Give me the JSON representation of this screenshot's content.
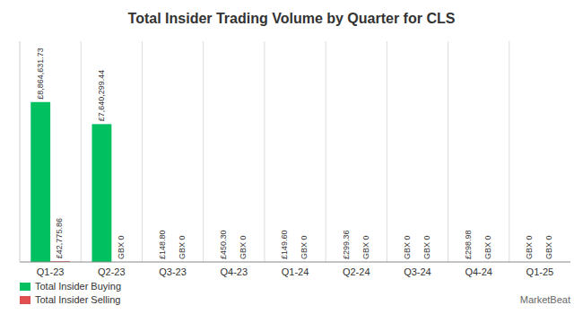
{
  "chart_data": {
    "type": "bar",
    "title": "Total Insider Trading Volume by Quarter for CLS",
    "categories": [
      "Q1-23",
      "Q2-23",
      "Q3-23",
      "Q4-23",
      "Q1-24",
      "Q2-24",
      "Q3-24",
      "Q4-24",
      "Q1-25"
    ],
    "series": [
      {
        "name": "Total Insider Buying",
        "color": "#00c060",
        "values": [
          8864631.73,
          7640299.44,
          148.8,
          450.3,
          149.6,
          299.36,
          0,
          298.98,
          0
        ],
        "value_labels": [
          "£8,864,631.73",
          "£7,640,299.44",
          "£148.80",
          "£450.30",
          "£149.60",
          "£299.36",
          "GBX 0",
          "£298.98",
          "GBX 0"
        ]
      },
      {
        "name": "Total Insider Selling",
        "color": "#e05050",
        "values": [
          42775.86,
          0,
          0,
          0,
          0,
          0,
          0,
          0,
          0
        ],
        "value_labels": [
          "£42,775.86",
          "GBX 0",
          "GBX 0",
          "GBX 0",
          "GBX 0",
          "GBX 0",
          "GBX 0",
          "GBX 0",
          "GBX 0"
        ]
      }
    ],
    "ylim": [
      0,
      12233191.7874
    ],
    "data_labels": true,
    "tick_labels": "x",
    "legend": "lower left",
    "annotations": [
      "MarketBeat"
    ]
  }
}
